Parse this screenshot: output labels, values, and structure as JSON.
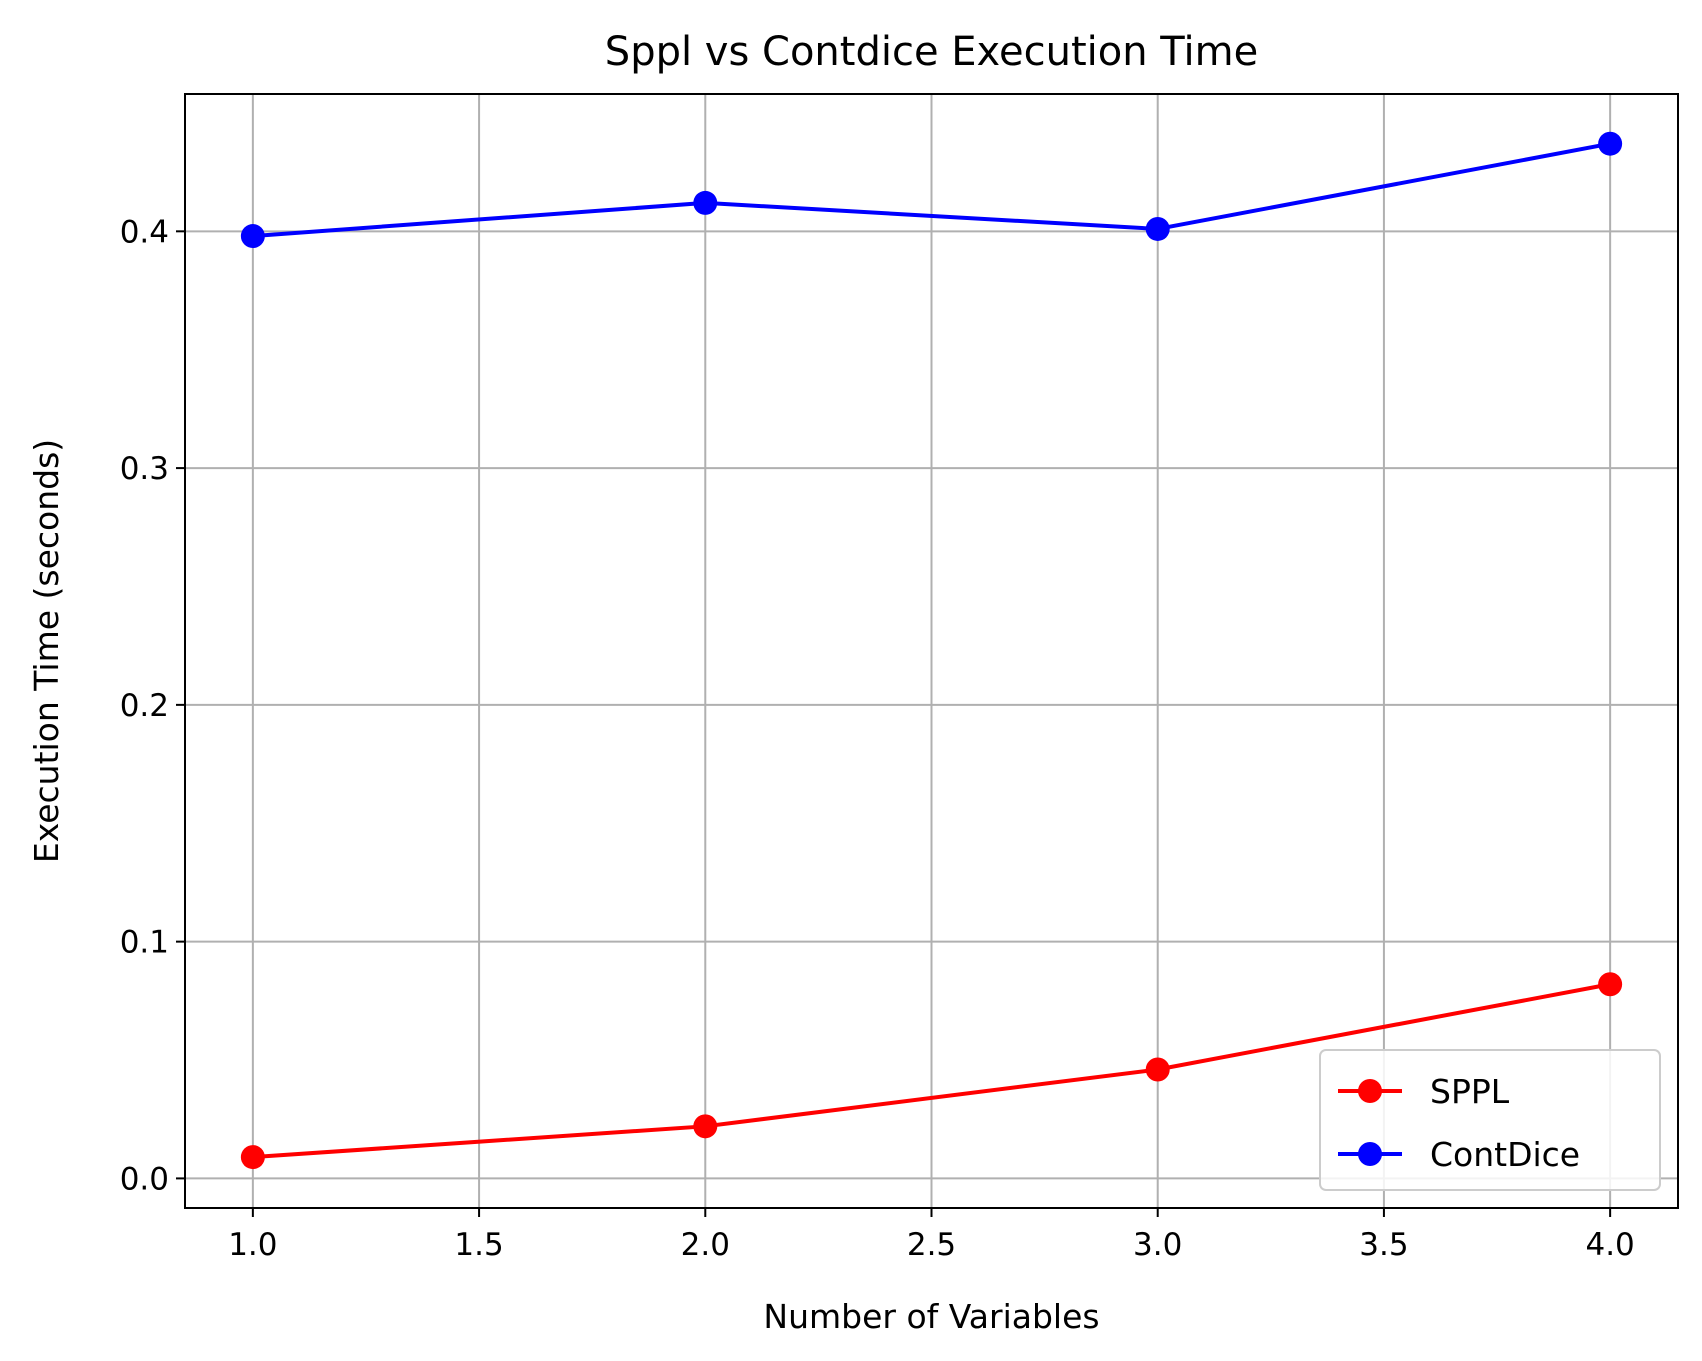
{
  "chart_data": {
    "type": "line",
    "title": "Sppl vs Contdice Execution Time",
    "xlabel": "Number of Variables",
    "ylabel": "Execution Time (seconds)",
    "xlim": [
      0.85,
      4.15
    ],
    "ylim": [
      -0.0125,
      0.458
    ],
    "x_ticks": [
      1.0,
      1.5,
      2.0,
      2.5,
      3.0,
      3.5,
      4.0
    ],
    "x_tick_labels": [
      "1.0",
      "1.5",
      "2.0",
      "2.5",
      "3.0",
      "3.5",
      "4.0"
    ],
    "y_ticks": [
      0.0,
      0.1,
      0.2,
      0.3,
      0.4
    ],
    "y_tick_labels": [
      "0.0",
      "0.1",
      "0.2",
      "0.3",
      "0.4"
    ],
    "grid": true,
    "legend_position": "bottom-right",
    "x": [
      1,
      2,
      3,
      4
    ],
    "series": [
      {
        "name": "SPPL",
        "color": "#ff0000",
        "values": [
          0.009,
          0.022,
          0.046,
          0.082
        ]
      },
      {
        "name": "ContDice",
        "color": "#0000ff",
        "values": [
          0.398,
          0.412,
          0.401,
          0.437
        ]
      }
    ]
  }
}
